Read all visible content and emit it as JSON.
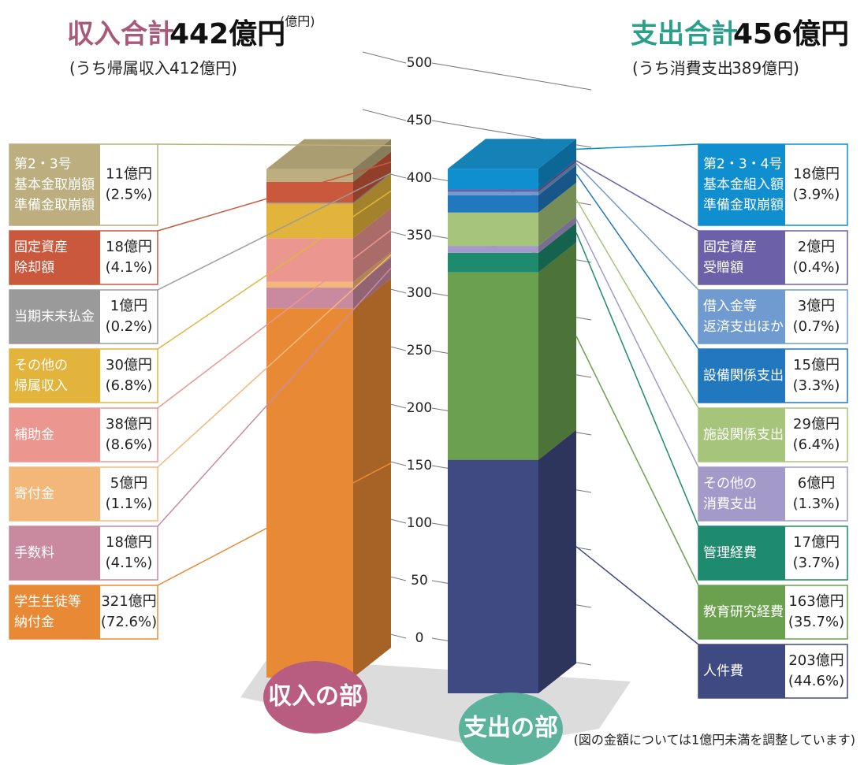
{
  "chart_data": {
    "type": "bar",
    "y_unit": "(億円)",
    "ylim": [
      0,
      500
    ],
    "yticks": [
      0,
      50,
      100,
      150,
      200,
      250,
      300,
      350,
      400,
      450,
      500
    ],
    "note": "(図の金額については1億円未満を調整しています)",
    "bars": [
      {
        "title": "収入合計",
        "total_label": "442億円",
        "sub_label": "(うち帰属収入",
        "sub_value": "412億円)",
        "badge": "収入の部",
        "segments": [
          {
            "name": [
              "学生生徒等",
              "納付金"
            ],
            "value": 321,
            "value_label": "321億円",
            "share_label": "(72.6%)",
            "color": "#e88a35"
          },
          {
            "name": [
              "手数料"
            ],
            "value": 18,
            "value_label": "18億円",
            "share_label": "(4.1%)",
            "color": "#c98aa0"
          },
          {
            "name": [
              "寄付金"
            ],
            "value": 5,
            "value_label": "5億円",
            "share_label": "(1.1%)",
            "color": "#f4b77a"
          },
          {
            "name": [
              "補助金"
            ],
            "value": 38,
            "value_label": "38億円",
            "share_label": "(8.6%)",
            "color": "#ec9690"
          },
          {
            "name": [
              "その他の",
              "帰属収入"
            ],
            "value": 30,
            "value_label": "30億円",
            "share_label": "(6.8%)",
            "color": "#e2b43c"
          },
          {
            "name": [
              "当期末未払金"
            ],
            "value": 1,
            "value_label": "1億円",
            "share_label": "(0.2%)",
            "color": "#9a9a9a"
          },
          {
            "name": [
              "固定資産",
              "除却額"
            ],
            "value": 18,
            "value_label": "18億円",
            "share_label": "(4.1%)",
            "color": "#c9583c"
          },
          {
            "name": [
              "第2・3号",
              "基本金取崩額",
              "準備金取崩額"
            ],
            "value": 11,
            "value_label": "11億円",
            "share_label": "(2.5%)",
            "color": "#bcae7e"
          }
        ]
      },
      {
        "title": "支出合計",
        "total_label": "456億円",
        "sub_label": "(うち消費支出",
        "sub_value": "389億円)",
        "badge": "支出の部",
        "segments": [
          {
            "name": [
              "人件費"
            ],
            "value": 203,
            "value_label": "203億円",
            "share_label": "(44.6%)",
            "color": "#404a82"
          },
          {
            "name": [
              "教育研究経費"
            ],
            "value": 163,
            "value_label": "163億円",
            "share_label": "(35.7%)",
            "color": "#6aa04e"
          },
          {
            "name": [
              "管理経費"
            ],
            "value": 17,
            "value_label": "17億円",
            "share_label": "(3.7%)",
            "color": "#1e8a6e"
          },
          {
            "name": [
              "その他の",
              "消費支出"
            ],
            "value": 6,
            "value_label": "6億円",
            "share_label": "(1.3%)",
            "color": "#a49ac9"
          },
          {
            "name": [
              "施設関係支出"
            ],
            "value": 29,
            "value_label": "29億円",
            "share_label": "(6.4%)",
            "color": "#a6c47a"
          },
          {
            "name": [
              "設備関係支出"
            ],
            "value": 15,
            "value_label": "15億円",
            "share_label": "(3.3%)",
            "color": "#2278be"
          },
          {
            "name": [
              "借入金等",
              "返済支出ほか"
            ],
            "value": 3,
            "value_label": "3億円",
            "share_label": "(0.7%)",
            "color": "#6f9bd1"
          },
          {
            "name": [
              "固定資産",
              "受贈額"
            ],
            "value": 2,
            "value_label": "2億円",
            "share_label": "(0.4%)",
            "color": "#6c60a8"
          },
          {
            "name": [
              "第2・3・4号",
              "基本金組入額",
              "準備金取崩額"
            ],
            "value": 18,
            "value_label": "18億円",
            "share_label": "(3.9%)",
            "color": "#0f8fd0"
          }
        ]
      }
    ]
  }
}
